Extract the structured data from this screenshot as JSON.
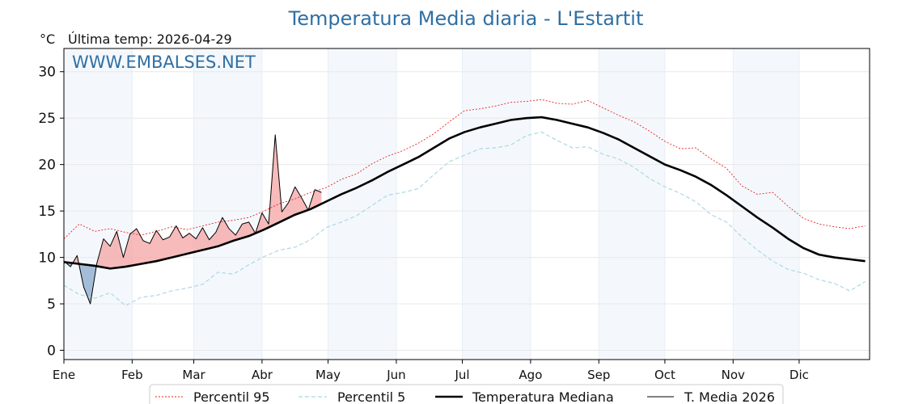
{
  "header": {
    "title": "Temperatura Media diaria - L'Estartit",
    "unit": "°C",
    "last_temp_label": "Última temp: 2026-04-29",
    "watermark": "WWW.EMBALSES.NET"
  },
  "chart_data": {
    "type": "line",
    "title": "Temperatura Media diaria - L'Estartit",
    "ylabel": "°C",
    "xlabel": "",
    "ylim": [
      -1,
      32.5
    ],
    "xlim": [
      1,
      366
    ],
    "grid": true,
    "legend_position": "bottom",
    "y_ticks": [
      0,
      5,
      10,
      15,
      20,
      25,
      30
    ],
    "month_labels": [
      "Ene",
      "Feb",
      "Mar",
      "Abr",
      "May",
      "Jun",
      "Jul",
      "Ago",
      "Sep",
      "Oct",
      "Nov",
      "Dic"
    ],
    "month_start_days": [
      1,
      32,
      60,
      91,
      121,
      152,
      182,
      213,
      244,
      274,
      305,
      335
    ],
    "x_unit": "day_of_year",
    "series": [
      {
        "name": "Percentil 95",
        "style": "dotted",
        "color": "#e8231f",
        "x": [
          1,
          8,
          15,
          22,
          29,
          36,
          43,
          50,
          57,
          64,
          71,
          78,
          85,
          92,
          99,
          106,
          113,
          120,
          127,
          134,
          141,
          148,
          155,
          162,
          169,
          176,
          183,
          190,
          197,
          204,
          211,
          218,
          225,
          232,
          239,
          246,
          253,
          260,
          267,
          274,
          281,
          288,
          295,
          302,
          309,
          316,
          323,
          330,
          337,
          344,
          351,
          358,
          365
        ],
        "values": [
          12.0,
          13.6,
          12.8,
          13.1,
          12.7,
          12.4,
          12.8,
          13.3,
          13.0,
          13.4,
          13.8,
          14.0,
          14.3,
          15.0,
          15.8,
          16.3,
          17.0,
          17.5,
          18.4,
          19.0,
          20.1,
          20.9,
          21.5,
          22.3,
          23.3,
          24.6,
          25.8,
          26.0,
          26.3,
          26.7,
          26.8,
          27.0,
          26.6,
          26.5,
          26.9,
          26.1,
          25.3,
          24.6,
          23.6,
          22.5,
          21.7,
          21.8,
          20.6,
          19.6,
          17.7,
          16.8,
          17.0,
          15.5,
          14.2,
          13.6,
          13.3,
          13.1,
          13.4
        ]
      },
      {
        "name": "Percentil 5",
        "style": "dashed",
        "color": "#add8e6",
        "x": [
          1,
          8,
          15,
          22,
          29,
          36,
          43,
          50,
          57,
          64,
          71,
          78,
          85,
          92,
          99,
          106,
          113,
          120,
          127,
          134,
          141,
          148,
          155,
          162,
          169,
          176,
          183,
          190,
          197,
          204,
          211,
          218,
          225,
          232,
          239,
          246,
          253,
          260,
          267,
          274,
          281,
          288,
          295,
          302,
          309,
          316,
          323,
          330,
          337,
          344,
          351,
          358,
          365
        ],
        "values": [
          7.0,
          6.0,
          5.6,
          6.2,
          4.8,
          5.7,
          5.9,
          6.4,
          6.7,
          7.1,
          8.4,
          8.2,
          9.2,
          10.1,
          10.8,
          11.1,
          11.9,
          13.2,
          13.8,
          14.5,
          15.6,
          16.7,
          17.0,
          17.4,
          18.9,
          20.3,
          21.0,
          21.7,
          21.8,
          22.1,
          23.1,
          23.5,
          22.6,
          21.8,
          21.9,
          21.1,
          20.6,
          19.7,
          18.5,
          17.6,
          16.9,
          16.0,
          14.6,
          13.8,
          12.2,
          10.8,
          9.6,
          8.7,
          8.3,
          7.6,
          7.2,
          6.4,
          7.4
        ]
      },
      {
        "name": "Temperatura Mediana",
        "style": "solid-thick",
        "color": "#000000",
        "x": [
          1,
          8,
          15,
          22,
          29,
          36,
          43,
          50,
          57,
          64,
          71,
          78,
          85,
          92,
          99,
          106,
          113,
          120,
          127,
          134,
          141,
          148,
          155,
          162,
          169,
          176,
          183,
          190,
          197,
          204,
          211,
          218,
          225,
          232,
          239,
          246,
          253,
          260,
          267,
          274,
          281,
          288,
          295,
          302,
          309,
          316,
          323,
          330,
          337,
          344,
          351,
          358,
          365
        ],
        "values": [
          9.5,
          9.3,
          9.1,
          8.8,
          9.0,
          9.3,
          9.6,
          10.0,
          10.4,
          10.8,
          11.2,
          11.8,
          12.3,
          13.0,
          13.8,
          14.6,
          15.2,
          16.0,
          16.8,
          17.5,
          18.3,
          19.2,
          20.0,
          20.8,
          21.8,
          22.8,
          23.5,
          24.0,
          24.4,
          24.8,
          25.0,
          25.1,
          24.8,
          24.4,
          24.0,
          23.4,
          22.7,
          21.8,
          20.9,
          20.0,
          19.4,
          18.7,
          17.8,
          16.7,
          15.5,
          14.3,
          13.2,
          12.0,
          11.0,
          10.3,
          10.0,
          9.8,
          9.6
        ]
      },
      {
        "name": "T. Media 2026",
        "style": "solid-thin",
        "color": "#000000",
        "x": [
          1,
          4,
          7,
          10,
          13,
          16,
          19,
          22,
          25,
          28,
          31,
          34,
          37,
          40,
          43,
          46,
          49,
          52,
          55,
          58,
          61,
          64,
          67,
          70,
          73,
          76,
          79,
          82,
          85,
          88,
          91,
          94,
          97,
          100,
          103,
          106,
          109,
          112,
          115,
          118
        ],
        "values": [
          9.6,
          9.0,
          10.2,
          6.8,
          5.0,
          9.4,
          12.0,
          11.2,
          12.8,
          10.0,
          12.5,
          13.1,
          11.8,
          11.5,
          12.9,
          11.9,
          12.2,
          13.4,
          12.1,
          12.6,
          12.0,
          13.2,
          11.9,
          12.7,
          14.3,
          13.1,
          12.4,
          13.6,
          13.8,
          12.6,
          14.8,
          13.6,
          23.2,
          14.9,
          15.9,
          17.6,
          16.4,
          15.1,
          17.3,
          17.0
        ]
      }
    ]
  }
}
